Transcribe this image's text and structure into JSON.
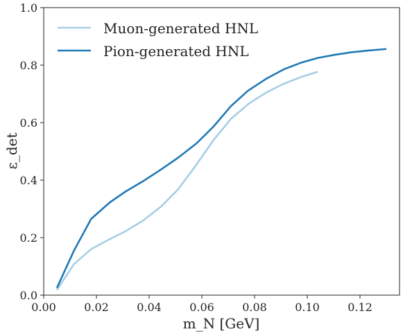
{
  "chart_data": {
    "type": "line",
    "title": "",
    "xlabel": "m_N [GeV]",
    "ylabel": "ε_det",
    "xlim": [
      0.0,
      0.135
    ],
    "ylim": [
      0.0,
      1.0
    ],
    "xticks": [
      0.0,
      0.02,
      0.04,
      0.06,
      0.08,
      0.1,
      0.12
    ],
    "xtick_labels": [
      "0.00",
      "0.02",
      "0.04",
      "0.06",
      "0.08",
      "0.10",
      "0.12"
    ],
    "yticks": [
      0.0,
      0.2,
      0.4,
      0.6,
      0.8,
      1.0
    ],
    "ytick_labels": [
      "0.0",
      "0.2",
      "0.4",
      "0.6",
      "0.8",
      "1.0"
    ],
    "grid": false,
    "legend_position": "top-left",
    "series": [
      {
        "name": "Muon-generated HNL",
        "color": "#a6cee3",
        "x": [
          0.005,
          0.0115,
          0.018,
          0.0245,
          0.031,
          0.0378,
          0.0445,
          0.051,
          0.0578,
          0.0645,
          0.071,
          0.0778,
          0.0845,
          0.091,
          0.0975,
          0.104
        ],
        "y": [
          0.018,
          0.108,
          0.16,
          0.192,
          0.222,
          0.26,
          0.308,
          0.368,
          0.452,
          0.54,
          0.613,
          0.666,
          0.705,
          0.735,
          0.758,
          0.777
        ]
      },
      {
        "name": "Pion-generated HNL",
        "color": "#1f78b4",
        "x": [
          0.005,
          0.0115,
          0.018,
          0.025,
          0.031,
          0.038,
          0.0445,
          0.051,
          0.058,
          0.0645,
          0.071,
          0.0775,
          0.0845,
          0.091,
          0.0975,
          0.104,
          0.1105,
          0.117,
          0.1235,
          0.13
        ],
        "y": [
          0.025,
          0.155,
          0.265,
          0.322,
          0.36,
          0.398,
          0.437,
          0.478,
          0.528,
          0.587,
          0.657,
          0.711,
          0.753,
          0.785,
          0.808,
          0.825,
          0.836,
          0.845,
          0.851,
          0.856
        ]
      }
    ]
  }
}
